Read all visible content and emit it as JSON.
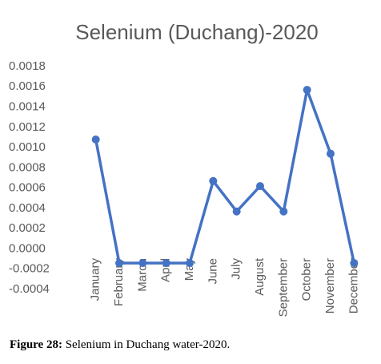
{
  "chart_data": {
    "type": "line",
    "title": "Selenium (Duchang)-2020",
    "categories": [
      "January",
      "February",
      "March",
      "April",
      "May",
      "June",
      "July",
      "August",
      "September",
      "October",
      "November",
      "December"
    ],
    "series": [
      {
        "name": "Selenium",
        "color": "#4472c4",
        "values": [
          0.00108,
          -0.00014,
          -0.00014,
          -0.00014,
          -0.00014,
          0.00067,
          0.00037,
          0.00062,
          0.00037,
          0.00157,
          0.00094,
          -0.00014
        ]
      }
    ],
    "ylim": [
      -0.0004,
      0.0018
    ],
    "yticks": [
      {
        "value": 0.0018,
        "label": "0.0018"
      },
      {
        "value": 0.0016,
        "label": "0.0016"
      },
      {
        "value": 0.0014,
        "label": "0.0014"
      },
      {
        "value": 0.0012,
        "label": "0.0012"
      },
      {
        "value": 0.001,
        "label": "0.0010"
      },
      {
        "value": 0.0008,
        "label": "0.0008"
      },
      {
        "value": 0.0006,
        "label": "0.0006"
      },
      {
        "value": 0.0004,
        "label": "0.0004"
      },
      {
        "value": 0.0002,
        "label": "0.0002"
      },
      {
        "value": 0,
        "label": "0.0000"
      },
      {
        "value": -0.0002,
        "label": "-0.0002"
      },
      {
        "value": -0.0004,
        "label": "-0.0004"
      }
    ],
    "grid": false
  },
  "caption": {
    "label": "Figure 28:",
    "text": "Selenium in Duchang water-2020."
  }
}
